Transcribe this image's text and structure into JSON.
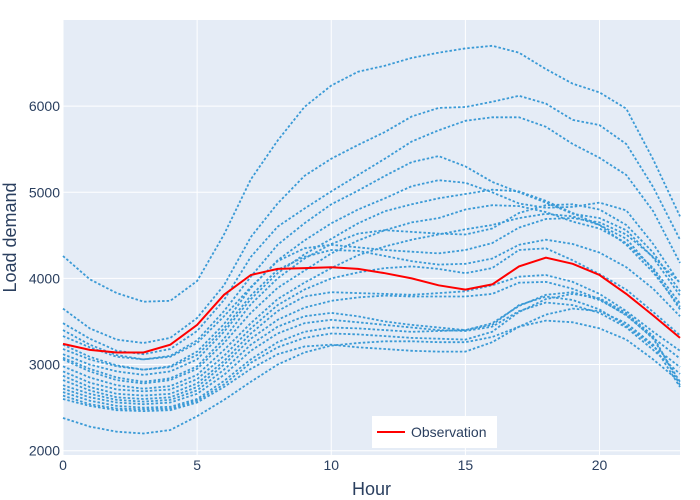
{
  "chart_data": {
    "type": "line",
    "xlabel": "Hour",
    "ylabel": "Load demand",
    "xlim": [
      0,
      23
    ],
    "ylim": [
      1950,
      7000
    ],
    "xticks": [
      0,
      5,
      10,
      15,
      20
    ],
    "yticks": [
      2000,
      3000,
      4000,
      5000,
      6000
    ],
    "grid": true,
    "legend": {
      "placement": "bottom-center",
      "entries": [
        "Observation"
      ]
    },
    "colors": {
      "background": "#e5ecf6",
      "grid": "#ffffff",
      "scenario": "#3a9ad6",
      "observation": "#ff0000",
      "text": "#2a3f5f"
    },
    "x": [
      0,
      1,
      2,
      3,
      4,
      5,
      6,
      7,
      8,
      9,
      10,
      11,
      12,
      13,
      14,
      15,
      16,
      17,
      18,
      19,
      20,
      21,
      22,
      23
    ],
    "observation": {
      "name": "Observation",
      "values": [
        3240,
        3170,
        3140,
        3140,
        3230,
        3460,
        3810,
        4040,
        4110,
        4120,
        4130,
        4110,
        4060,
        4000,
        3920,
        3870,
        3930,
        4140,
        4240,
        4170,
        4040,
        3820,
        3570,
        3310
      ]
    },
    "scenarios": [
      {
        "values": [
          4260,
          3990,
          3830,
          3730,
          3740,
          3970,
          4510,
          5150,
          5600,
          5990,
          6240,
          6400,
          6470,
          6560,
          6620,
          6670,
          6700,
          6620,
          6430,
          6260,
          6160,
          5970,
          5380,
          4720
        ]
      },
      {
        "values": [
          3650,
          3420,
          3290,
          3250,
          3310,
          3540,
          3920,
          4480,
          4870,
          5190,
          5390,
          5550,
          5700,
          5880,
          5980,
          5990,
          6050,
          6120,
          6030,
          5840,
          5780,
          5560,
          5060,
          4450
        ]
      },
      {
        "values": [
          3480,
          3300,
          3160,
          3120,
          3180,
          3390,
          3750,
          4250,
          4600,
          4810,
          5010,
          5200,
          5390,
          5590,
          5720,
          5830,
          5870,
          5870,
          5760,
          5560,
          5400,
          5200,
          4780,
          4180
        ]
      },
      {
        "values": [
          3330,
          3200,
          3090,
          3060,
          3100,
          3280,
          3620,
          4020,
          4390,
          4640,
          4860,
          5020,
          5190,
          5350,
          5420,
          5300,
          5120,
          5000,
          4880,
          4750,
          4700,
          4560,
          4240,
          3800
        ]
      },
      {
        "values": [
          3180,
          3060,
          2980,
          2940,
          2980,
          3150,
          3470,
          3890,
          4210,
          4440,
          4640,
          4800,
          4930,
          5070,
          5140,
          5110,
          5000,
          4870,
          4820,
          4830,
          4880,
          4790,
          4400,
          3940
        ]
      },
      {
        "values": [
          3120,
          3000,
          2920,
          2880,
          2920,
          3060,
          3380,
          3760,
          4060,
          4280,
          4460,
          4640,
          4780,
          4860,
          4930,
          4980,
          5030,
          5010,
          4900,
          4760,
          4620,
          4390,
          4070,
          3670
        ]
      },
      {
        "values": [
          3060,
          2920,
          2820,
          2780,
          2820,
          2950,
          3250,
          3600,
          3890,
          4090,
          4290,
          4440,
          4560,
          4650,
          4700,
          4800,
          4850,
          4840,
          4770,
          4660,
          4580,
          4410,
          4120,
          3710
        ]
      },
      {
        "values": [
          2980,
          2850,
          2760,
          2720,
          2750,
          2880,
          3170,
          3480,
          3760,
          3950,
          4120,
          4270,
          4370,
          4450,
          4510,
          4570,
          4620,
          4700,
          4750,
          4720,
          4620,
          4460,
          4100,
          3640
        ]
      },
      {
        "values": [
          2920,
          2790,
          2710,
          2690,
          2710,
          2830,
          3100,
          3420,
          3690,
          3870,
          4000,
          4070,
          4120,
          4140,
          4110,
          4060,
          4120,
          4330,
          4350,
          4210,
          4050,
          3870,
          3610,
          3340
        ]
      },
      {
        "values": [
          2870,
          2740,
          2660,
          2640,
          2660,
          2780,
          3040,
          3360,
          3620,
          3790,
          3840,
          3830,
          3820,
          3810,
          3830,
          3850,
          3920,
          4020,
          4040,
          3960,
          3820,
          3620,
          3380,
          3160
        ]
      },
      {
        "values": [
          2820,
          2700,
          2620,
          2600,
          2620,
          2740,
          3000,
          3300,
          3520,
          3660,
          3740,
          3780,
          3800,
          3790,
          3790,
          3790,
          3820,
          3950,
          3960,
          3880,
          3760,
          3570,
          3310,
          3070
        ]
      },
      {
        "values": [
          2760,
          2660,
          2590,
          2570,
          2590,
          2700,
          2940,
          3230,
          3440,
          3560,
          3600,
          3560,
          3500,
          3460,
          3430,
          3400,
          3460,
          3690,
          3790,
          3750,
          3640,
          3450,
          3210,
          2970
        ]
      },
      {
        "values": [
          2720,
          2620,
          2560,
          2540,
          2560,
          2660,
          2880,
          3160,
          3360,
          3480,
          3520,
          3490,
          3460,
          3430,
          3400,
          3390,
          3440,
          3620,
          3720,
          3690,
          3600,
          3430,
          3170,
          2890
        ]
      },
      {
        "values": [
          2680,
          2580,
          2520,
          2500,
          2510,
          2600,
          2810,
          3060,
          3260,
          3380,
          3430,
          3420,
          3400,
          3380,
          3390,
          3400,
          3480,
          3680,
          3810,
          3840,
          3750,
          3580,
          3300,
          2800
        ]
      },
      {
        "values": [
          2640,
          2540,
          2490,
          2480,
          2490,
          2580,
          2770,
          3020,
          3200,
          3310,
          3360,
          3350,
          3330,
          3310,
          3300,
          3290,
          3380,
          3610,
          3760,
          3820,
          3770,
          3600,
          3330,
          2760
        ]
      },
      {
        "values": [
          2600,
          2520,
          2470,
          2460,
          2470,
          2560,
          2740,
          2950,
          3120,
          3210,
          3230,
          3200,
          3180,
          3160,
          3150,
          3150,
          3260,
          3440,
          3580,
          3650,
          3620,
          3480,
          3230,
          2740
        ]
      },
      {
        "values": [
          2380,
          2280,
          2220,
          2200,
          2240,
          2400,
          2590,
          2800,
          3000,
          3140,
          3220,
          3250,
          3270,
          3270,
          3260,
          3260,
          3320,
          3440,
          3510,
          3490,
          3420,
          3290,
          3060,
          2800
        ]
      },
      {
        "values": [
          3080,
          2950,
          2850,
          2800,
          2840,
          2980,
          3300,
          3700,
          4000,
          4230,
          4400,
          4520,
          4560,
          4540,
          4520,
          4510,
          4580,
          4760,
          4850,
          4860,
          4800,
          4620,
          4300,
          3850
        ]
      },
      {
        "values": [
          3230,
          3090,
          2990,
          2940,
          2970,
          3110,
          3420,
          3800,
          4100,
          4250,
          4330,
          4320,
          4260,
          4200,
          4160,
          4170,
          4230,
          4390,
          4450,
          4400,
          4300,
          4130,
          3880,
          3560
        ]
      },
      {
        "values": [
          3400,
          3230,
          3110,
          3060,
          3090,
          3250,
          3560,
          3900,
          4200,
          4350,
          4390,
          4360,
          4330,
          4310,
          4290,
          4330,
          4410,
          4590,
          4690,
          4700,
          4650,
          4510,
          4250,
          3950
        ]
      }
    ]
  }
}
